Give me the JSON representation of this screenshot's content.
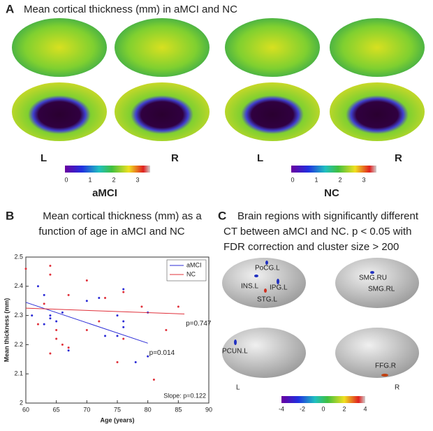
{
  "panel_a": {
    "label": "A",
    "title": "Mean cortical thickness (mm) in aMCI and NC",
    "groups": [
      {
        "name": "aMCI",
        "hemis": [
          "L",
          "R"
        ],
        "colorbar_ticks": [
          0,
          1,
          2,
          3
        ]
      },
      {
        "name": "NC",
        "hemis": [
          "L",
          "R"
        ],
        "colorbar_ticks": [
          0,
          1,
          2,
          3
        ]
      }
    ]
  },
  "panel_b": {
    "label": "B",
    "title_lines": [
      "Mean cortical thickness (mm) as a",
      "function of age in aMCI and NC"
    ]
  },
  "chart_data": {
    "type": "scatter",
    "xlabel": "Age (years)",
    "ylabel": "Mean thickness (mm)",
    "xlim": [
      60,
      90
    ],
    "xticks": [
      60,
      65,
      70,
      75,
      80,
      85,
      90
    ],
    "ylim": [
      2,
      2.5
    ],
    "yticks": [
      2,
      2.1,
      2.2,
      2.3,
      2.4,
      2.5
    ],
    "legend": "top-right",
    "series": [
      {
        "name": "aMCI",
        "color": "#2b2bd6",
        "x": [
          62,
          63,
          64,
          64,
          63,
          61,
          65,
          66,
          67,
          70,
          72,
          73,
          75,
          76,
          76,
          76,
          78,
          80,
          80,
          75
        ],
        "values": [
          2.4,
          2.37,
          2.3,
          2.29,
          2.27,
          2.3,
          2.28,
          2.31,
          2.18,
          2.35,
          2.36,
          2.23,
          2.23,
          2.39,
          2.28,
          2.26,
          2.14,
          2.16,
          2.31,
          2.3
        ]
      },
      {
        "name": "NC",
        "color": "#e0303a",
        "x": [
          60,
          62,
          64,
          64,
          64,
          65,
          65,
          66,
          67,
          67,
          70,
          70,
          72,
          73,
          75,
          76,
          76,
          79,
          81,
          83,
          85,
          63
        ],
        "values": [
          2.46,
          2.27,
          2.47,
          2.44,
          2.17,
          2.22,
          2.25,
          2.2,
          2.19,
          2.37,
          2.42,
          2.25,
          2.28,
          2.36,
          2.14,
          2.38,
          2.22,
          2.33,
          2.08,
          2.25,
          2.33,
          2.34
        ]
      }
    ],
    "fits": [
      {
        "x": [
          60,
          80
        ],
        "values": [
          2.345,
          2.205
        ],
        "color": "#2b2bd6",
        "label": "p=0.014"
      },
      {
        "x": [
          60,
          86
        ],
        "values": [
          2.325,
          2.305
        ],
        "color": "#e0303a",
        "label": "p=0.747"
      }
    ],
    "annotation": "Slope: p=0.122"
  },
  "panel_c": {
    "label": "C",
    "title_lines": [
      "Brain regions with significantly different",
      "CT between aMCI and NC. p < 0.05 with",
      "FDR correction and cluster size > 200"
    ],
    "regions": [
      "PoCG.L",
      "INS.L",
      "IPG.L",
      "STG.L",
      "SMG.RU",
      "SMG.RL",
      "PCUN.L",
      "FFG.R"
    ],
    "hemis": [
      "L",
      "R"
    ],
    "colorbar_ticks": [
      -4,
      -2,
      0,
      2,
      4
    ]
  }
}
